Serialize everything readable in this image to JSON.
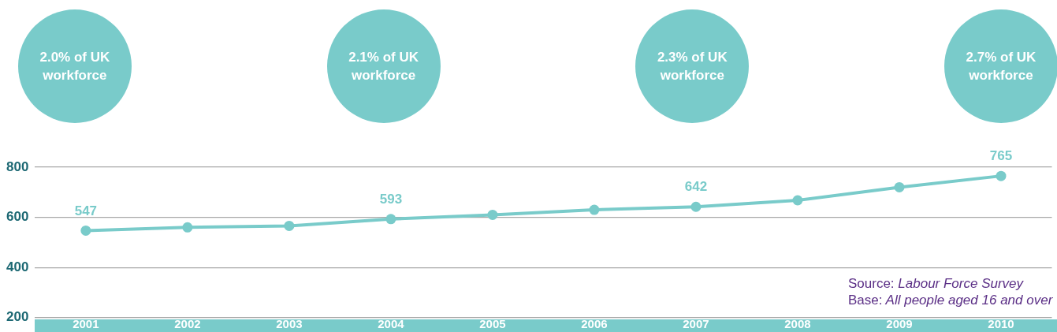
{
  "chart_data": {
    "type": "line",
    "categories": [
      "2001",
      "2002",
      "2003",
      "2004",
      "2005",
      "2006",
      "2007",
      "2008",
      "2009",
      "2010"
    ],
    "series": [
      {
        "color": "#79cbca",
        "values": [
          547,
          560,
          566,
          593,
          610,
          630,
          642,
          668,
          720,
          765
        ],
        "value_labels": [
          "547",
          null,
          null,
          "593",
          null,
          null,
          "642",
          null,
          null,
          "765"
        ]
      }
    ],
    "ylim": [
      200,
      800
    ],
    "yticks": [
      200,
      400,
      600,
      800
    ],
    "grid": "y",
    "marker": "circle",
    "annotations": [
      "2.0% of UK workforce",
      "2.1% of UK workforce",
      "2.3% of UK workforce",
      "2.7% of UK workforce",
      "Source: Labour Force Survey",
      "Base: All people aged 16 and over"
    ]
  }
}
